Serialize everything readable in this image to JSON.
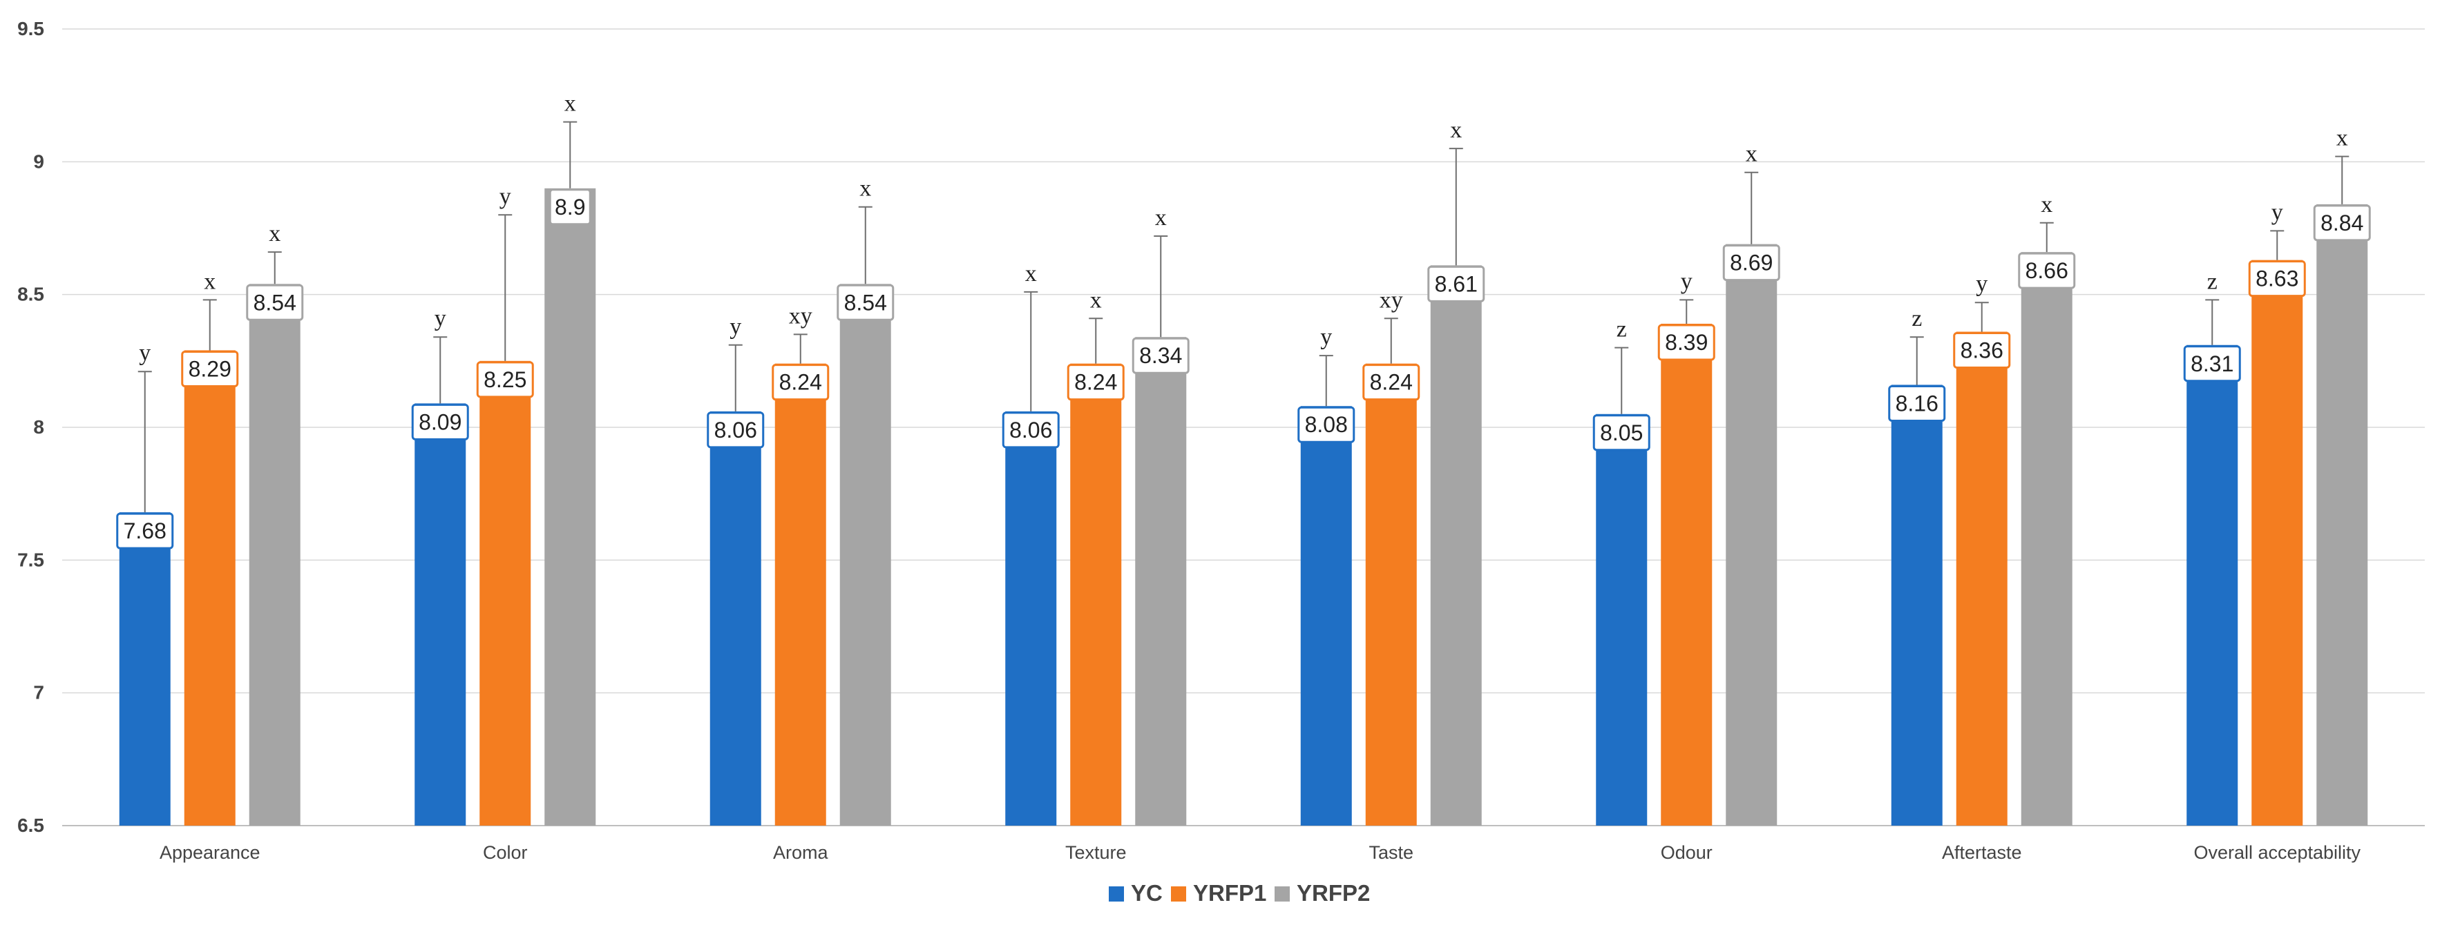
{
  "chart_data": {
    "type": "bar",
    "title": "",
    "xlabel": "",
    "ylabel": "",
    "ylim": [
      6.5,
      9.5
    ],
    "yticks": [
      "6.5",
      "7",
      "7.5",
      "8",
      "8.5",
      "9",
      "9.5"
    ],
    "grid": true,
    "legend_position": "bottom",
    "categories": [
      "Appearance",
      "Color",
      "Aroma",
      "Texture",
      "Taste",
      "Odour",
      "Aftertaste",
      "Overall acceptability"
    ],
    "series": [
      {
        "name": "YC",
        "color": "#1f6fc5",
        "values": [
          7.68,
          8.09,
          8.06,
          8.06,
          8.08,
          8.05,
          8.16,
          8.31
        ],
        "labels": [
          "7.68",
          "8.09",
          "8.06",
          "8.06",
          "8.08",
          "8.05",
          "8.16",
          "8.31"
        ],
        "error_tops": [
          8.21,
          8.34,
          8.31,
          8.51,
          8.27,
          8.3,
          8.34,
          8.48
        ],
        "significance": [
          "y",
          "y",
          "y",
          "x",
          "y",
          "z",
          "z",
          "z"
        ]
      },
      {
        "name": "YRFP1",
        "color": "#f47d20",
        "values": [
          8.29,
          8.25,
          8.24,
          8.24,
          8.24,
          8.39,
          8.36,
          8.63
        ],
        "labels": [
          "8.29",
          "8.25",
          "8.24",
          "8.24",
          "8.24",
          "8.39",
          "8.36",
          "8.63"
        ],
        "error_tops": [
          8.48,
          8.8,
          8.35,
          8.41,
          8.41,
          8.48,
          8.47,
          8.74
        ],
        "significance": [
          "x",
          "y",
          "xy",
          "x",
          "xy",
          "y",
          "y",
          "y"
        ]
      },
      {
        "name": "YRFP2",
        "color": "#a5a5a5",
        "values": [
          8.54,
          8.9,
          8.54,
          8.34,
          8.61,
          8.69,
          8.66,
          8.84
        ],
        "labels": [
          "8.54",
          "8.9",
          "8.54",
          "8.34",
          "8.61",
          "8.69",
          "8.66",
          "8.84"
        ],
        "error_tops": [
          8.66,
          9.15,
          8.83,
          8.72,
          9.05,
          8.96,
          8.77,
          9.02
        ],
        "significance": [
          "x",
          "x",
          "x",
          "x",
          "x",
          "x",
          "x",
          "x"
        ]
      }
    ]
  }
}
